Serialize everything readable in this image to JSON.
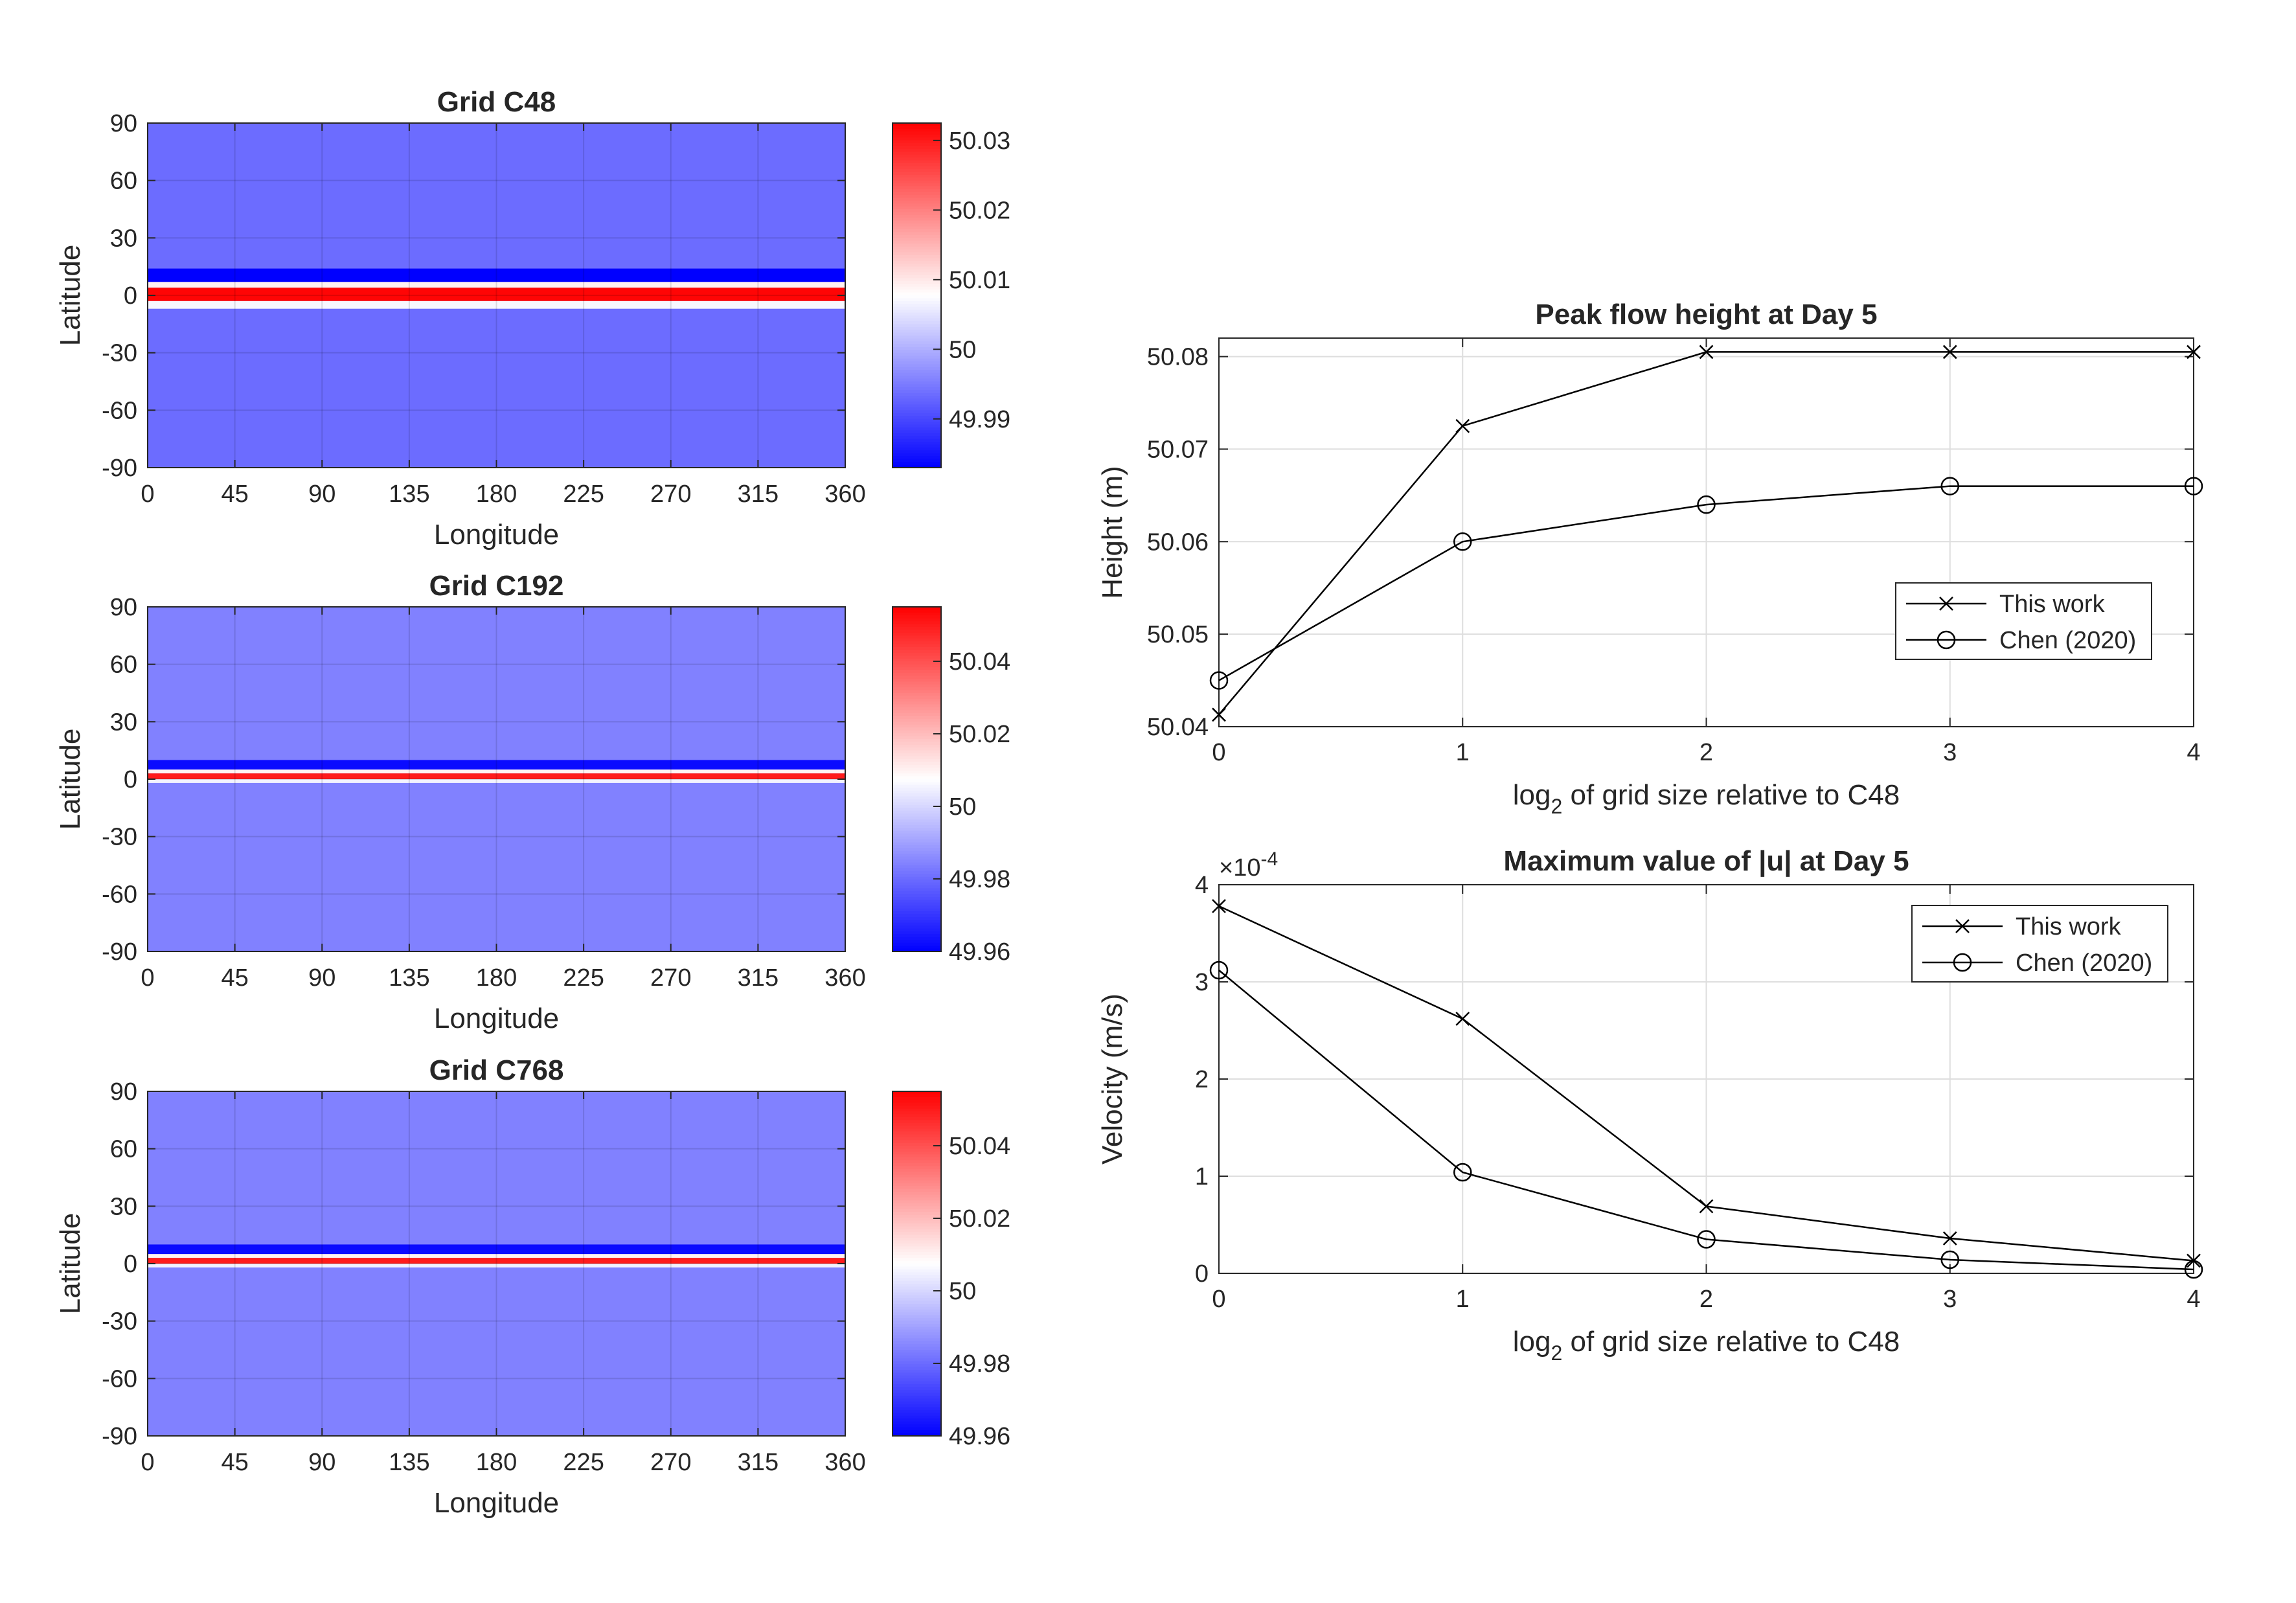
{
  "colors": {
    "cold": "#0000ff",
    "neutral": "#ffffff",
    "warm": "#ff0000",
    "background_field": "#5f67ff",
    "background_field_fine": "#7f83ff",
    "grid": "#dedede",
    "line": "#000000",
    "axis": "#262626"
  },
  "chart_data": [
    {
      "type": "heatmap",
      "title": "Grid C48",
      "xlabel": "Longitude",
      "ylabel": "Latitude",
      "xlim": [
        0,
        360
      ],
      "ylim": [
        -90,
        90
      ],
      "xticks": [
        0,
        45,
        90,
        135,
        180,
        225,
        270,
        315,
        360
      ],
      "yticks": [
        90,
        60,
        30,
        0,
        -30,
        -60,
        -90
      ],
      "grid": true,
      "colorbar": {
        "range": [
          49.983,
          50.0325
        ],
        "ticks": [
          "50.03",
          "50.02",
          "50.01",
          "50",
          "49.99"
        ],
        "tick_values": [
          50.03,
          50.02,
          50.01,
          50.0,
          49.99
        ]
      },
      "field": {
        "background": 49.9935,
        "bands": [
          {
            "lat_range": [
              7,
              14
            ],
            "value": 49.983
          },
          {
            "lat_range": [
              4,
              7
            ],
            "value": 50.009
          },
          {
            "lat_range": [
              -3,
              4
            ],
            "value": 50.032
          },
          {
            "lat_range": [
              -7,
              -3
            ],
            "value": 50.007
          }
        ]
      }
    },
    {
      "type": "heatmap",
      "title": "Grid C192",
      "xlabel": "Longitude",
      "ylabel": "Latitude",
      "xlim": [
        0,
        360
      ],
      "ylim": [
        -90,
        90
      ],
      "xticks": [
        0,
        45,
        90,
        135,
        180,
        225,
        270,
        315,
        360
      ],
      "yticks": [
        90,
        60,
        30,
        0,
        -30,
        -60,
        -90
      ],
      "grid": true,
      "colorbar": {
        "range": [
          49.96,
          50.055
        ],
        "ticks": [
          "50.04",
          "50.02",
          "50",
          "49.98",
          "49.96"
        ],
        "tick_values": [
          50.04,
          50.02,
          50.0,
          49.98,
          49.96
        ]
      },
      "field": {
        "background": 49.984,
        "bands": [
          {
            "lat_range": [
              5,
              10
            ],
            "value": 49.962
          },
          {
            "lat_range": [
              3,
              5
            ],
            "value": 50.01
          },
          {
            "lat_range": [
              0,
              3
            ],
            "value": 50.05
          },
          {
            "lat_range": [
              -2,
              0
            ],
            "value": 50.005
          }
        ]
      }
    },
    {
      "type": "heatmap",
      "title": "Grid C768",
      "xlabel": "Longitude",
      "ylabel": "Latitude",
      "xlim": [
        0,
        360
      ],
      "ylim": [
        -90,
        90
      ],
      "xticks": [
        0,
        45,
        90,
        135,
        180,
        225,
        270,
        315,
        360
      ],
      "yticks": [
        90,
        60,
        30,
        0,
        -30,
        -60,
        -90
      ],
      "grid": true,
      "colorbar": {
        "range": [
          49.96,
          50.055
        ],
        "ticks": [
          "50.04",
          "50.02",
          "50",
          "49.98",
          "49.96"
        ],
        "tick_values": [
          50.04,
          50.02,
          50.0,
          49.98,
          49.96
        ]
      },
      "field": {
        "background": 49.984,
        "bands": [
          {
            "lat_range": [
              5,
              10
            ],
            "value": 49.962
          },
          {
            "lat_range": [
              3,
              5
            ],
            "value": 50.01
          },
          {
            "lat_range": [
              0,
              3
            ],
            "value": 50.05
          },
          {
            "lat_range": [
              -2,
              0
            ],
            "value": 50.005
          }
        ]
      }
    },
    {
      "type": "line",
      "title": "Peak flow height at Day 5",
      "xlabel": "log",
      "xlabel_sub": "2",
      "xlabel_rest": " of grid size relative to C48",
      "ylabel": "Height (m)",
      "xlim": [
        0,
        4
      ],
      "ylim": [
        50.04,
        50.082
      ],
      "xticks": [
        "0",
        "1",
        "2",
        "3",
        "4"
      ],
      "yticks": [
        "50.08",
        "50.07",
        "50.06",
        "50.05",
        "50.04"
      ],
      "grid": true,
      "legend": "center-right",
      "x": [
        0,
        1,
        2,
        3,
        4
      ],
      "series": [
        {
          "name": "This work",
          "marker": "x",
          "values": [
            50.0413,
            50.0725,
            50.0805,
            50.0805,
            50.0805
          ]
        },
        {
          "name": "Chen (2020)",
          "marker": "o",
          "values": [
            50.045,
            50.06,
            50.064,
            50.066,
            50.066
          ]
        }
      ]
    },
    {
      "type": "line",
      "title": "Maximum value of |u| at Day 5",
      "xlabel": "log",
      "xlabel_sub": "2",
      "xlabel_rest": " of grid size relative to C48",
      "ylabel": "Velocity (m/s)",
      "exponent_base": "×10",
      "exponent": "-4",
      "xlim": [
        0,
        4
      ],
      "ylim": [
        0,
        4
      ],
      "xticks": [
        "0",
        "1",
        "2",
        "3",
        "4"
      ],
      "yticks": [
        "4",
        "3",
        "2",
        "1",
        "0"
      ],
      "grid": true,
      "legend": "top-right",
      "x": [
        0,
        1,
        2,
        3,
        4
      ],
      "series": [
        {
          "name": "This work",
          "marker": "x",
          "values": [
            3.78,
            2.62,
            0.69,
            0.36,
            0.13
          ]
        },
        {
          "name": "Chen (2020)",
          "marker": "o",
          "values": [
            3.12,
            1.04,
            0.35,
            0.14,
            0.04
          ]
        }
      ]
    }
  ]
}
